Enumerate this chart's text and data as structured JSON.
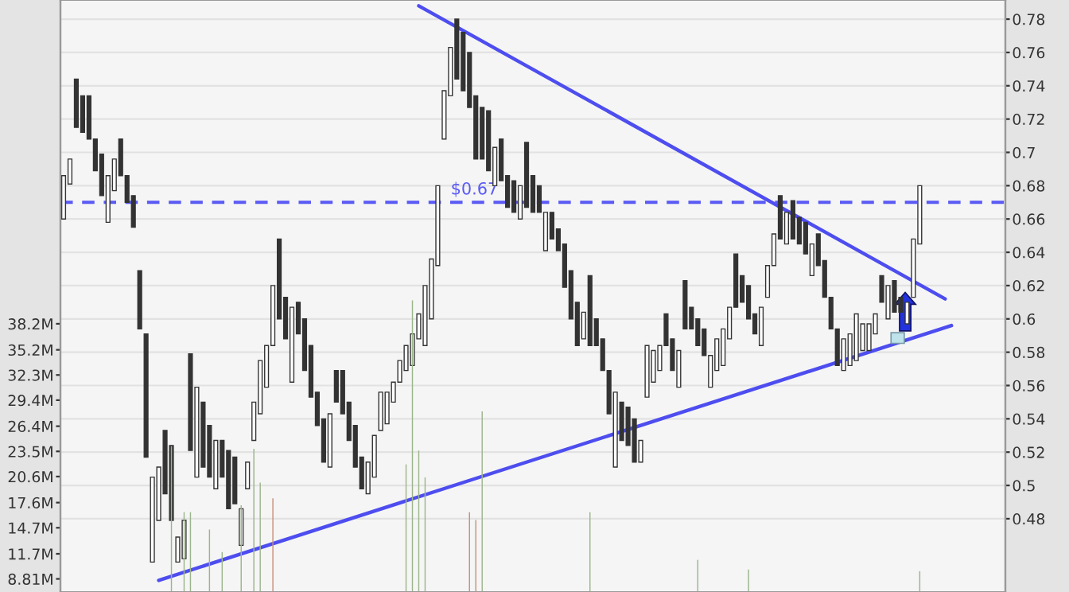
{
  "chart_data": {
    "type": "candlestick",
    "categories": [
      null,
      null,
      null,
      null,
      null,
      null,
      null,
      null,
      null,
      null,
      null,
      null,
      null,
      null,
      null,
      null,
      null,
      null,
      null,
      null,
      null,
      null,
      null,
      null,
      null,
      null,
      null,
      null,
      null,
      null,
      null,
      null,
      null,
      null,
      null,
      null,
      null,
      null,
      null,
      null,
      null,
      null,
      null,
      null,
      null,
      null,
      null,
      null,
      null,
      null,
      null,
      null,
      null,
      null,
      null,
      null,
      null,
      null,
      null,
      null,
      null,
      null,
      null,
      null,
      null,
      null,
      null,
      null,
      null,
      null,
      null,
      null,
      null,
      null,
      null,
      null,
      null,
      null,
      null,
      null,
      null,
      null,
      null,
      null,
      null,
      null,
      null,
      null,
      null,
      null,
      null,
      null,
      null,
      null,
      null,
      null,
      null,
      null,
      null,
      null,
      null,
      null,
      null,
      null,
      null,
      null,
      null,
      null,
      null,
      null,
      null,
      null,
      null,
      null,
      null,
      null,
      null,
      null,
      null,
      null,
      null,
      null,
      null,
      null,
      null,
      null,
      null,
      null,
      null,
      null,
      null,
      null,
      null,
      null,
      null,
      null,
      null,
      null,
      null,
      null,
      null,
      null,
      null,
      null,
      null,
      null,
      null,
      null,
      null
    ],
    "color": "#333333",
    "ohlc": [
      [
        0.66,
        0.686,
        0.66,
        0.686
      ],
      [
        0.681,
        0.696,
        0.681,
        0.696
      ],
      [
        0.744,
        0.744,
        0.715,
        0.715
      ],
      [
        0.734,
        0.734,
        0.712,
        0.712
      ],
      [
        0.734,
        0.734,
        0.708,
        0.708
      ],
      [
        0.708,
        0.708,
        0.689,
        0.689
      ],
      [
        0.699,
        0.699,
        0.674,
        0.674
      ],
      [
        0.658,
        0.686,
        0.658,
        0.686
      ],
      [
        0.677,
        0.696,
        0.677,
        0.696
      ],
      [
        0.708,
        0.708,
        0.686,
        0.686
      ],
      [
        0.686,
        0.686,
        0.67,
        0.67
      ],
      [
        0.674,
        0.674,
        0.655,
        0.655
      ],
      [
        0.629,
        0.629,
        0.594,
        0.594
      ],
      [
        0.591,
        0.591,
        0.517,
        0.517
      ],
      [
        0.454,
        0.505,
        0.454,
        0.505
      ],
      [
        0.479,
        0.511,
        0.479,
        0.511
      ],
      [
        0.533,
        0.533,
        0.495,
        0.495
      ],
      [
        0.524,
        0.524,
        0.479,
        0.479
      ],
      [
        0.454,
        0.469,
        0.454,
        0.469
      ],
      [
        0.456,
        0.479,
        0.456,
        0.479
      ],
      [
        0.579,
        0.579,
        0.521,
        0.521
      ],
      [
        0.505,
        0.559,
        0.505,
        0.559
      ],
      [
        0.55,
        0.55,
        0.511,
        0.511
      ],
      [
        0.536,
        0.536,
        0.505,
        0.505
      ],
      [
        0.498,
        0.527,
        0.498,
        0.527
      ],
      [
        0.527,
        0.527,
        0.505,
        0.505
      ],
      [
        0.521,
        0.521,
        0.486,
        0.486
      ],
      [
        0.517,
        0.517,
        0.489,
        0.489
      ],
      [
        0.464,
        0.486,
        0.464,
        0.486
      ],
      [
        0.498,
        0.514,
        0.498,
        0.514
      ],
      [
        0.527,
        0.55,
        0.527,
        0.55
      ],
      [
        0.543,
        0.575,
        0.543,
        0.575
      ],
      [
        0.559,
        0.584,
        0.559,
        0.584
      ],
      [
        0.584,
        0.62,
        0.584,
        0.62
      ],
      [
        0.648,
        0.648,
        0.6,
        0.6
      ],
      [
        0.613,
        0.613,
        0.588,
        0.588
      ],
      [
        0.562,
        0.607,
        0.562,
        0.607
      ],
      [
        0.61,
        0.61,
        0.591,
        0.591
      ],
      [
        0.6,
        0.6,
        0.569,
        0.569
      ],
      [
        0.584,
        0.584,
        0.553,
        0.553
      ],
      [
        0.556,
        0.556,
        0.536,
        0.536
      ],
      [
        0.54,
        0.54,
        0.514,
        0.514
      ],
      [
        0.511,
        0.543,
        0.511,
        0.543
      ],
      [
        0.569,
        0.569,
        0.55,
        0.55
      ],
      [
        0.569,
        0.569,
        0.543,
        0.543
      ],
      [
        0.55,
        0.55,
        0.527,
        0.527
      ],
      [
        0.536,
        0.536,
        0.511,
        0.511
      ],
      [
        0.517,
        0.517,
        0.498,
        0.498
      ],
      [
        0.495,
        0.514,
        0.495,
        0.514
      ],
      [
        0.505,
        0.53,
        0.505,
        0.53
      ],
      [
        0.533,
        0.556,
        0.533,
        0.556
      ],
      [
        0.537,
        0.556,
        0.537,
        0.556
      ],
      [
        0.55,
        0.562,
        0.55,
        0.562
      ],
      [
        0.562,
        0.575,
        0.562,
        0.575
      ],
      [
        0.569,
        0.584,
        0.569,
        0.584
      ],
      [
        0.572,
        0.591,
        0.572,
        0.591
      ],
      [
        0.588,
        0.603,
        0.588,
        0.603
      ],
      [
        0.584,
        0.62,
        0.584,
        0.62
      ],
      [
        0.6,
        0.636,
        0.6,
        0.636
      ],
      [
        0.632,
        0.68,
        0.632,
        0.68
      ],
      [
        0.708,
        0.737,
        0.708,
        0.737
      ],
      [
        0.734,
        0.763,
        0.734,
        0.763
      ],
      [
        0.78,
        0.78,
        0.744,
        0.744
      ],
      [
        0.772,
        0.772,
        0.737,
        0.737
      ],
      [
        0.76,
        0.76,
        0.727,
        0.727
      ],
      [
        0.734,
        0.734,
        0.696,
        0.696
      ],
      [
        0.727,
        0.727,
        0.696,
        0.696
      ],
      [
        0.725,
        0.725,
        0.689,
        0.689
      ],
      [
        0.68,
        0.703,
        0.68,
        0.703
      ],
      [
        0.708,
        0.708,
        0.683,
        0.683
      ],
      [
        0.686,
        0.686,
        0.667,
        0.667
      ],
      [
        0.683,
        0.683,
        0.664,
        0.664
      ],
      [
        0.66,
        0.68,
        0.66,
        0.68
      ],
      [
        0.706,
        0.706,
        0.667,
        0.667
      ],
      [
        0.686,
        0.686,
        0.664,
        0.664
      ],
      [
        0.68,
        0.68,
        0.664,
        0.664
      ],
      [
        0.641,
        0.664,
        0.641,
        0.664
      ],
      [
        0.664,
        0.664,
        0.648,
        0.648
      ],
      [
        0.654,
        0.654,
        0.641,
        0.641
      ],
      [
        0.645,
        0.645,
        0.619,
        0.619
      ],
      [
        0.629,
        0.629,
        0.6,
        0.6
      ],
      [
        0.61,
        0.61,
        0.584,
        0.584
      ],
      [
        0.588,
        0.604,
        0.588,
        0.604
      ],
      [
        0.626,
        0.626,
        0.584,
        0.584
      ],
      [
        0.6,
        0.6,
        0.584,
        0.584
      ],
      [
        0.588,
        0.588,
        0.569,
        0.569
      ],
      [
        0.569,
        0.569,
        0.543,
        0.543
      ],
      [
        0.511,
        0.556,
        0.511,
        0.556
      ],
      [
        0.55,
        0.55,
        0.527,
        0.527
      ],
      [
        0.547,
        0.547,
        0.524,
        0.524
      ],
      [
        0.54,
        0.54,
        0.514,
        0.514
      ],
      [
        0.514,
        0.527,
        0.514,
        0.527
      ],
      [
        0.553,
        0.584,
        0.553,
        0.584
      ],
      [
        0.562,
        0.581,
        0.562,
        0.581
      ],
      [
        0.569,
        0.584,
        0.569,
        0.584
      ],
      [
        0.603,
        0.603,
        0.584,
        0.584
      ],
      [
        0.588,
        0.588,
        0.569,
        0.569
      ],
      [
        0.559,
        0.581,
        0.559,
        0.581
      ],
      [
        0.623,
        0.623,
        0.594,
        0.594
      ],
      [
        0.607,
        0.607,
        0.594,
        0.594
      ],
      [
        0.6,
        0.6,
        0.584,
        0.584
      ],
      [
        0.594,
        0.594,
        0.578,
        0.578
      ],
      [
        0.559,
        0.578,
        0.559,
        0.578
      ],
      [
        0.569,
        0.588,
        0.569,
        0.588
      ],
      [
        0.572,
        0.594,
        0.572,
        0.594
      ],
      [
        0.588,
        0.607,
        0.588,
        0.607
      ],
      [
        0.639,
        0.639,
        0.607,
        0.607
      ],
      [
        0.626,
        0.626,
        0.61,
        0.61
      ],
      [
        0.62,
        0.62,
        0.6,
        0.6
      ],
      [
        0.603,
        0.603,
        0.591,
        0.591
      ],
      [
        0.584,
        0.607,
        0.584,
        0.607
      ],
      [
        0.613,
        0.632,
        0.613,
        0.632
      ],
      [
        0.632,
        0.651,
        0.632,
        0.651
      ],
      [
        0.674,
        0.674,
        0.648,
        0.648
      ],
      [
        0.645,
        0.664,
        0.645,
        0.664
      ],
      [
        0.671,
        0.671,
        0.648,
        0.648
      ],
      [
        0.661,
        0.661,
        0.645,
        0.645
      ],
      [
        0.658,
        0.658,
        0.639,
        0.639
      ],
      [
        0.626,
        0.645,
        0.626,
        0.645
      ],
      [
        0.651,
        0.651,
        0.632,
        0.632
      ],
      [
        0.635,
        0.635,
        0.613,
        0.613
      ],
      [
        0.613,
        0.613,
        0.594,
        0.594
      ],
      [
        0.594,
        0.594,
        0.572,
        0.572
      ],
      [
        0.569,
        0.588,
        0.569,
        0.588
      ],
      [
        0.572,
        0.591,
        0.572,
        0.591
      ],
      [
        0.575,
        0.603,
        0.575,
        0.603
      ],
      [
        0.581,
        0.597,
        0.581,
        0.597
      ],
      [
        0.581,
        0.597,
        0.581,
        0.597
      ],
      [
        0.591,
        0.603,
        0.591,
        0.603
      ],
      [
        0.626,
        0.626,
        0.61,
        0.61
      ],
      [
        0.6,
        0.62,
        0.6,
        0.62
      ],
      [
        0.623,
        0.623,
        0.604,
        0.604
      ],
      [
        0.613,
        0.613,
        0.604,
        0.604
      ],
      [
        0.597,
        0.61,
        0.597,
        0.61
      ],
      [
        0.613,
        0.648,
        0.613,
        0.648
      ],
      [
        0.645,
        0.68,
        0.645,
        0.68
      ],
      null,
      null,
      null,
      null,
      null,
      null,
      null,
      null,
      null,
      null,
      null,
      null,
      null
    ],
    "series": [
      {
        "type": "bar",
        "axis": "y2",
        "values": [
          null,
          null,
          null,
          null,
          null,
          null,
          null,
          null,
          null,
          null,
          null,
          null,
          null,
          null,
          null,
          null,
          null,
          24.1,
          null,
          16.5,
          16.5,
          null,
          null,
          14.5,
          null,
          11.9,
          null,
          null,
          17.3,
          null,
          23.8,
          19.9,
          null,
          18.1,
          null,
          null,
          null,
          null,
          null,
          null,
          null,
          null,
          null,
          null,
          null,
          null,
          null,
          null,
          null,
          null,
          null,
          null,
          null,
          null,
          22.0,
          40.9,
          23.6,
          20.5,
          null,
          null,
          null,
          null,
          null,
          null,
          16.5,
          15.6,
          28.1,
          null,
          null,
          null,
          null,
          null,
          null,
          null,
          null,
          null,
          null,
          null,
          null,
          null,
          null,
          null,
          null,
          16.5,
          null,
          null,
          null,
          null,
          null,
          null,
          null,
          null,
          null,
          null,
          null,
          null,
          null,
          null,
          null,
          null,
          11.0,
          null,
          null,
          null,
          null,
          null,
          null,
          null,
          9.9,
          null,
          null,
          null,
          null,
          null,
          null,
          null,
          null,
          null,
          null,
          null,
          null,
          null,
          null,
          null,
          null,
          null,
          null,
          null,
          null,
          null,
          null,
          null,
          null,
          null,
          null,
          9.7,
          null,
          null,
          null,
          null,
          null,
          null,
          null,
          null,
          null,
          null,
          null,
          null,
          null
        ],
        "colors": [
          null,
          null,
          null,
          null,
          null,
          null,
          null,
          null,
          null,
          null,
          null,
          null,
          null,
          null,
          null,
          null,
          null,
          "#9cb58c",
          null,
          "#9cb58c",
          "#9cb58c",
          null,
          null,
          "#9cb58c",
          null,
          "#9cb58c",
          null,
          null,
          "#9cb58c",
          null,
          "#9cb58c",
          "#9cb58c",
          null,
          "#c9907c",
          null,
          null,
          null,
          null,
          null,
          null,
          null,
          null,
          null,
          null,
          null,
          null,
          null,
          null,
          null,
          null,
          null,
          null,
          null,
          null,
          "#9cb58c",
          "#9cb58c",
          "#9cb58c",
          "#9cb58c",
          null,
          null,
          null,
          null,
          null,
          null,
          "#c9907c",
          "#c9907c",
          "#9cb58c",
          null,
          null,
          null,
          null,
          null,
          null,
          null,
          null,
          null,
          null,
          null,
          null,
          null,
          null,
          null,
          null,
          "#9cb58c",
          null,
          null,
          null,
          null,
          null,
          null,
          null,
          null,
          null,
          null,
          null,
          null,
          null,
          null,
          null,
          null,
          "#9cb58c",
          null,
          null,
          null,
          null,
          null,
          null,
          null,
          "#9cb58c",
          null,
          null,
          null,
          null,
          null,
          null,
          null,
          null,
          null,
          null,
          null,
          null,
          null,
          null,
          null,
          null,
          null,
          null,
          null,
          null,
          null,
          null,
          null,
          null,
          null,
          null,
          "#9cb58c",
          null,
          null,
          null,
          null,
          null,
          null,
          null,
          null,
          null,
          null,
          null,
          null,
          null
        ]
      },
      {
        "type": "line",
        "color": "#4d4df0",
        "values": [
          null,
          null,
          null,
          null,
          null,
          null,
          null,
          null,
          null,
          null,
          null,
          null,
          null,
          null,
          null,
          null,
          null,
          null,
          null,
          null,
          null,
          null,
          null,
          null,
          null,
          null,
          null,
          null,
          null,
          null,
          null,
          null,
          null,
          null,
          null,
          null,
          null,
          null,
          null,
          null,
          null,
          null,
          null,
          null,
          null,
          null,
          null,
          null,
          null,
          null,
          null,
          null,
          null,
          null,
          null,
          null,
          0.788,
          null,
          null,
          null,
          null,
          null,
          null,
          null,
          null,
          null,
          null,
          null,
          null,
          null,
          null,
          null,
          null,
          null,
          null,
          null,
          null,
          null,
          null,
          null,
          null,
          null,
          null,
          null,
          null,
          null,
          null,
          null,
          null,
          null,
          null,
          null,
          null,
          null,
          null,
          null,
          null,
          null,
          null,
          null,
          null,
          null,
          null,
          null,
          null,
          null,
          null,
          null,
          null,
          null,
          null,
          null,
          null,
          null,
          null,
          null,
          null,
          null,
          null,
          null,
          null,
          null,
          null,
          null,
          null,
          null,
          null,
          null,
          null,
          null,
          null,
          null,
          null,
          null,
          null,
          null,
          null,
          null,
          null,
          0.612,
          null,
          null,
          null,
          null,
          null,
          null,
          null,
          null,
          null
        ]
      },
      {
        "type": "line",
        "color": "#4d4df0",
        "values": [
          null,
          null,
          null,
          null,
          null,
          null,
          null,
          null,
          null,
          null,
          null,
          null,
          null,
          null,
          null,
          0.443,
          null,
          null,
          null,
          null,
          null,
          null,
          null,
          null,
          null,
          null,
          null,
          null,
          null,
          null,
          null,
          null,
          null,
          null,
          null,
          null,
          null,
          null,
          null,
          null,
          null,
          null,
          null,
          null,
          null,
          null,
          null,
          null,
          null,
          null,
          null,
          null,
          null,
          null,
          null,
          null,
          null,
          null,
          null,
          null,
          null,
          null,
          null,
          null,
          null,
          null,
          null,
          null,
          null,
          null,
          null,
          null,
          null,
          null,
          null,
          null,
          null,
          null,
          null,
          null,
          null,
          null,
          null,
          null,
          null,
          null,
          null,
          null,
          null,
          null,
          null,
          null,
          null,
          null,
          null,
          null,
          null,
          null,
          null,
          null,
          null,
          null,
          null,
          null,
          null,
          null,
          null,
          null,
          null,
          null,
          null,
          null,
          null,
          null,
          null,
          null,
          null,
          null,
          null,
          null,
          null,
          null,
          null,
          null,
          null,
          null,
          null,
          null,
          null,
          null,
          null,
          null,
          null,
          null,
          null,
          null,
          null,
          null,
          null,
          null,
          0.596,
          null,
          null,
          null,
          null,
          null,
          null,
          null,
          null
        ]
      }
    ],
    "ylim": [
      0.436,
      0.7915
    ],
    "yticks": [
      0.48,
      0.5,
      0.52,
      0.54,
      0.56,
      0.58,
      0.6,
      0.62,
      0.64,
      0.66,
      0.68,
      0.7,
      0.72,
      0.74,
      0.76,
      0.78
    ],
    "y2lim": [
      7.3,
      75.5
    ],
    "y2ticks": [
      {
        "value": 8.81,
        "label": "8.81M"
      },
      {
        "value": 11.7,
        "label": "11.7M"
      },
      {
        "value": 14.7,
        "label": "14.7M"
      },
      {
        "value": 17.6,
        "label": "17.6M"
      },
      {
        "value": 20.6,
        "label": "20.6M"
      },
      {
        "value": 23.5,
        "label": "23.5M"
      },
      {
        "value": 26.4,
        "label": "26.4M"
      },
      {
        "value": 29.4,
        "label": "29.4M"
      },
      {
        "value": 32.3,
        "label": "32.3M"
      },
      {
        "value": 35.2,
        "label": "35.2M"
      },
      {
        "value": 38.2,
        "label": "38.2M"
      }
    ],
    "ref_lines": [
      {
        "axis": "y",
        "value": 0.67,
        "label": "$0.67",
        "color": "#5a5af5",
        "line_style": "dashed"
      }
    ],
    "grid": "y"
  }
}
